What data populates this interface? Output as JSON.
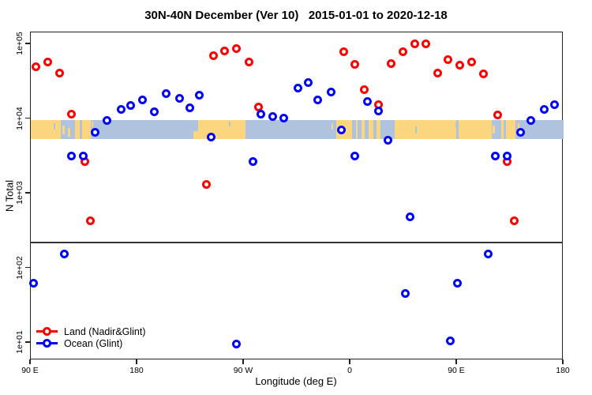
{
  "title": "30N-40N December (Ver 10)   2015-01-01 to 2020-12-18",
  "chart_data": {
    "type": "scatter",
    "title": "30N-40N December (Ver 10)   2015-01-01 to 2020-12-18",
    "xlabel": "Longitude (deg E)",
    "ylabel": "N Total",
    "x_axis": {
      "min": 90,
      "max": 540,
      "tick_values": [
        90,
        180,
        270,
        360,
        450,
        540
      ],
      "tick_labels": [
        "90 E",
        "180",
        "90 W",
        "0",
        "90 E",
        "180"
      ]
    },
    "y_axis": {
      "scale": "log",
      "tick_exponents": [
        1,
        2,
        3,
        4,
        5
      ],
      "tick_labels": [
        "1e+01",
        "1e+02",
        "1e+03",
        "1e+04",
        "1e+05"
      ],
      "range_exponents": [
        0.84,
        5.16
      ]
    },
    "hline_n": 215,
    "map_band": {
      "top_n": 9400,
      "bottom_n": 5200,
      "ocean_color": "#afc3de",
      "land_color": "#fcd67e",
      "land_segments": [
        [
          90,
          115.5
        ],
        [
          127,
          131.5
        ],
        [
          133.5,
          140.5
        ],
        [
          231,
          271
        ],
        [
          348,
          361.5
        ],
        [
          364.5,
          366
        ],
        [
          369,
          372
        ],
        [
          375.5,
          379
        ],
        [
          382,
          385.5
        ],
        [
          397.5,
          449
        ],
        [
          451,
          479
        ],
        [
          487,
          489.5
        ],
        [
          491.5,
          499.5
        ]
      ],
      "islands": [
        {
          "deg": [
            116.5,
            118.5
          ],
          "frac": [
            0.3,
            0.75
          ]
        },
        {
          "deg": [
            121,
            123
          ],
          "frac": [
            0.45,
            0.9
          ]
        },
        {
          "deg": [
            141.5,
            142.5
          ],
          "frac": [
            0.1,
            0.4
          ]
        },
        {
          "deg": [
            227,
            231
          ],
          "frac": [
            0.6,
            1.0
          ]
        },
        {
          "deg": [
            344,
            345.5
          ],
          "frac": [
            0.2,
            0.5
          ]
        },
        {
          "deg": [
            480,
            482
          ],
          "frac": [
            0.3,
            0.7
          ]
        },
        {
          "deg": [
            501,
            502.5
          ],
          "frac": [
            0.2,
            0.6
          ]
        }
      ],
      "lakes": [
        {
          "deg": [
            109,
            110.5
          ],
          "frac": [
            0.2,
            0.5
          ]
        },
        {
          "deg": [
            257,
            258.5
          ],
          "frac": [
            0.1,
            0.35
          ]
        },
        {
          "deg": [
            414.5,
            416
          ],
          "frac": [
            0.35,
            0.7
          ]
        },
        {
          "deg": [
            448.5,
            450.5
          ],
          "frac": [
            0.15,
            0.45
          ]
        }
      ]
    },
    "series": [
      {
        "name": "Land (Nadir&Glint)",
        "color": "#ff0000",
        "points": [
          [
            95.3,
            49000
          ],
          [
            105.3,
            57000
          ],
          [
            115.3,
            40000
          ],
          [
            125.3,
            11400
          ],
          [
            136.0,
            2600
          ],
          [
            141.3,
            420
          ],
          [
            239.3,
            1300
          ],
          [
            244.7,
            69000
          ],
          [
            254.0,
            80000
          ],
          [
            264.0,
            86000
          ],
          [
            274.7,
            57000
          ],
          [
            282.7,
            14000
          ],
          [
            354.7,
            78000
          ],
          [
            364.0,
            53000
          ],
          [
            372.0,
            24000
          ],
          [
            384.0,
            15000
          ],
          [
            395.3,
            54000
          ],
          [
            404.7,
            78000
          ],
          [
            414.7,
            100000
          ],
          [
            424.0,
            100000
          ],
          [
            434.0,
            40000
          ],
          [
            443.3,
            61000
          ],
          [
            453.3,
            51000
          ],
          [
            462.7,
            56000
          ],
          [
            473.3,
            39000
          ],
          [
            485.3,
            11000
          ],
          [
            493.3,
            2600
          ],
          [
            499.3,
            420
          ]
        ]
      },
      {
        "name": "Ocean (Glint)",
        "color": "#0000ff",
        "points": [
          [
            93.3,
            62
          ],
          [
            118.7,
            150
          ],
          [
            124.7,
            3100
          ],
          [
            135.3,
            3100
          ],
          [
            144.7,
            6400
          ],
          [
            155.3,
            9200
          ],
          [
            166.7,
            13000
          ],
          [
            174.7,
            14600
          ],
          [
            185.3,
            17700
          ],
          [
            194.7,
            12300
          ],
          [
            205.3,
            21500
          ],
          [
            216.0,
            18200
          ],
          [
            224.7,
            13600
          ],
          [
            233.3,
            20500
          ],
          [
            243.3,
            5600
          ],
          [
            264.0,
            9.3
          ],
          [
            278.0,
            2650
          ],
          [
            285.3,
            11400
          ],
          [
            294.7,
            10600
          ],
          [
            304.0,
            10100
          ],
          [
            316.0,
            25000
          ],
          [
            324.7,
            29600
          ],
          [
            333.3,
            17700
          ],
          [
            344.0,
            22600
          ],
          [
            353.3,
            7000
          ],
          [
            364.0,
            3100
          ],
          [
            374.7,
            16500
          ],
          [
            384.0,
            12600
          ],
          [
            392.0,
            5100
          ],
          [
            406.7,
            45
          ],
          [
            411.3,
            480
          ],
          [
            445.3,
            10.3
          ],
          [
            451.3,
            62
          ],
          [
            477.3,
            150
          ],
          [
            482.7,
            3100
          ],
          [
            493.3,
            3140
          ],
          [
            504.0,
            6400
          ],
          [
            513.3,
            9200
          ],
          [
            524.0,
            13000
          ],
          [
            533.3,
            15000
          ]
        ]
      }
    ],
    "legend": {
      "position": "bottom-left",
      "items": [
        "Land (Nadir&Glint)",
        "Ocean (Glint)"
      ]
    }
  }
}
